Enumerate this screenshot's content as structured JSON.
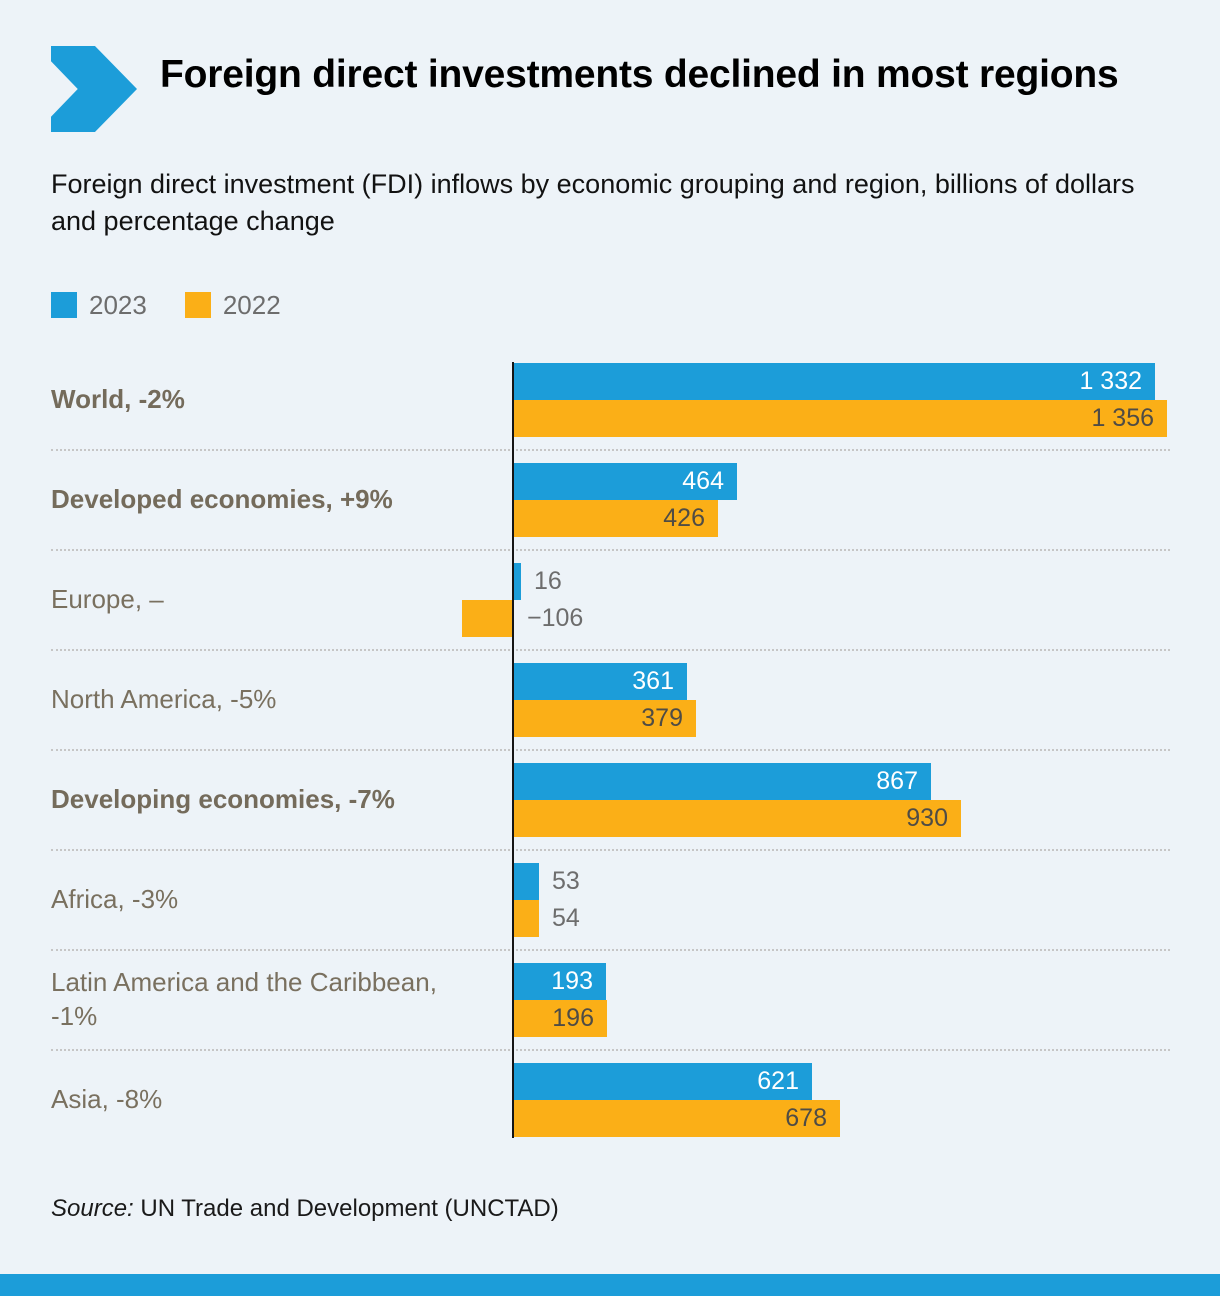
{
  "header": {
    "title": "Foreign direct investments declined in most regions",
    "subtitle": "Foreign direct investment (FDI) inflows by economic grouping and region, billions of dollars and percentage change"
  },
  "legend": {
    "items": [
      {
        "label": "2023",
        "color": "#1c9dd9"
      },
      {
        "label": "2022",
        "color": "#fbaf17"
      }
    ]
  },
  "source": {
    "prefix": "Source:",
    "text": " UN Trade and Development (UNCTAD)"
  },
  "colors": {
    "series_2023": "#1c9dd9",
    "series_2022": "#fbaf17",
    "background": "#edf3f8",
    "footer_stripe": "#1c9dd9",
    "axis": "#151515",
    "category_label": "#79705f",
    "value_outside": "#6d6d6d",
    "value_on_blue": "#ffffff",
    "value_on_orange": "#4f4c45"
  },
  "chart_data": {
    "type": "bar",
    "orientation": "horizontal",
    "title": "Foreign direct investments declined in most regions",
    "subtitle": "Foreign direct investment (FDI) inflows by economic grouping and region, billions of dollars and percentage change",
    "unit": "billions of US dollars",
    "legend_position": "top-left",
    "grid": false,
    "xlim": [
      -150,
      1400
    ],
    "series_names": [
      "2023",
      "2022"
    ],
    "rows": [
      {
        "category": "World, -2%",
        "bold": true,
        "label_inside": true,
        "values": {
          "y2023": 1332,
          "y2022": 1356
        },
        "labels": {
          "y2023": "1 332",
          "y2022": "1 356"
        }
      },
      {
        "category": "Developed economies, +9%",
        "bold": true,
        "label_inside": true,
        "values": {
          "y2023": 464,
          "y2022": 426
        },
        "labels": {
          "y2023": "464",
          "y2022": "426"
        }
      },
      {
        "category": "Europe, –",
        "bold": false,
        "label_inside": false,
        "values": {
          "y2023": 16,
          "y2022": -106
        },
        "labels": {
          "y2023": "16",
          "y2022": "−106"
        }
      },
      {
        "category": "North America, -5%",
        "bold": false,
        "label_inside": true,
        "values": {
          "y2023": 361,
          "y2022": 379
        },
        "labels": {
          "y2023": "361",
          "y2022": "379"
        }
      },
      {
        "category": "Developing economies, -7%",
        "bold": true,
        "label_inside": true,
        "values": {
          "y2023": 867,
          "y2022": 930
        },
        "labels": {
          "y2023": "867",
          "y2022": "930"
        }
      },
      {
        "category": "Africa, -3%",
        "bold": false,
        "label_inside": false,
        "values": {
          "y2023": 53,
          "y2022": 54
        },
        "labels": {
          "y2023": "53",
          "y2022": "54"
        }
      },
      {
        "category": "Latin America and the Caribbean, -1%",
        "bold": false,
        "label_inside": true,
        "values": {
          "y2023": 193,
          "y2022": 196
        },
        "labels": {
          "y2023": "193",
          "y2022": "196"
        }
      },
      {
        "category": "Asia, -8%",
        "bold": false,
        "label_inside": true,
        "values": {
          "y2023": 621,
          "y2022": 678
        },
        "labels": {
          "y2023": "621",
          "y2022": "678"
        }
      }
    ]
  }
}
